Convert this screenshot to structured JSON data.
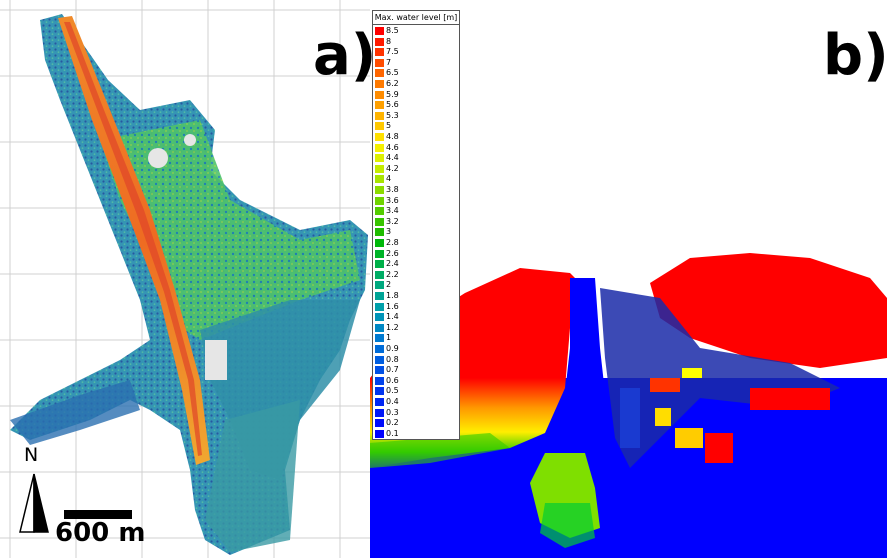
{
  "panel_a": {
    "label": "a)"
  },
  "panel_b": {
    "label": "b)"
  },
  "legend": {
    "title": "Max. water level [m]",
    "entries": [
      {
        "value": "8.5",
        "color": "#ff0000"
      },
      {
        "value": "8",
        "color": "#ff1a00"
      },
      {
        "value": "7.5",
        "color": "#ff3300"
      },
      {
        "value": "7",
        "color": "#ff4d00"
      },
      {
        "value": "6.5",
        "color": "#ff6600"
      },
      {
        "value": "6.2",
        "color": "#ff7a00"
      },
      {
        "value": "5.9",
        "color": "#ff8c00"
      },
      {
        "value": "5.6",
        "color": "#ffa000"
      },
      {
        "value": "5.3",
        "color": "#ffb400"
      },
      {
        "value": "5",
        "color": "#ffc800"
      },
      {
        "value": "4.8",
        "color": "#ffe000"
      },
      {
        "value": "4.6",
        "color": "#f5f000"
      },
      {
        "value": "4.4",
        "color": "#ddf000"
      },
      {
        "value": "4.2",
        "color": "#c4ec00"
      },
      {
        "value": "4",
        "color": "#a8e400"
      },
      {
        "value": "3.8",
        "color": "#8cdc00"
      },
      {
        "value": "3.6",
        "color": "#70d400"
      },
      {
        "value": "3.4",
        "color": "#54cc00"
      },
      {
        "value": "3.2",
        "color": "#38c400"
      },
      {
        "value": "3",
        "color": "#20bc00"
      },
      {
        "value": "2.8",
        "color": "#00b80a"
      },
      {
        "value": "2.6",
        "color": "#00b428"
      },
      {
        "value": "2.4",
        "color": "#00b048"
      },
      {
        "value": "2.2",
        "color": "#00ac64"
      },
      {
        "value": "2",
        "color": "#00a87e"
      },
      {
        "value": "1.8",
        "color": "#00a496"
      },
      {
        "value": "1.6",
        "color": "#00a0aa"
      },
      {
        "value": "1.4",
        "color": "#0094b8"
      },
      {
        "value": "1.2",
        "color": "#0088c4"
      },
      {
        "value": "1",
        "color": "#007ad0"
      },
      {
        "value": "0.9",
        "color": "#006cd8"
      },
      {
        "value": "0.8",
        "color": "#005ee0"
      },
      {
        "value": "0.7",
        "color": "#0050e6"
      },
      {
        "value": "0.6",
        "color": "#0042ec"
      },
      {
        "value": "0.5",
        "color": "#0034f0"
      },
      {
        "value": "0.4",
        "color": "#0026f4"
      },
      {
        "value": "0.3",
        "color": "#0018f8"
      },
      {
        "value": "0.2",
        "color": "#000cfb"
      },
      {
        "value": "0.1",
        "color": "#0000ff"
      }
    ]
  },
  "north_arrow": {
    "label": "N"
  },
  "scale_bar": {
    "label": "600 m"
  },
  "colors": {
    "flood_red": "#ff0000",
    "water_blue": "#0000ff",
    "river_orange": "#ff8c00",
    "low_teal": "#1a7fa0"
  }
}
